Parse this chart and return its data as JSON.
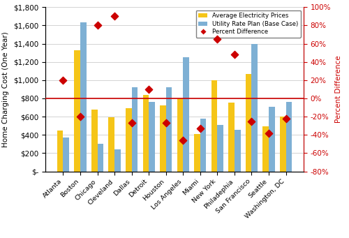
{
  "cities": [
    "Atlanta",
    "Boston",
    "Chicago",
    "Cleveland",
    "Dallas",
    "Detroit",
    "Houston",
    "Los Angeles",
    "Miami",
    "New York",
    "Philadephia",
    "San Francisco",
    "Seattle",
    "Washington, DC"
  ],
  "avg_electricity": [
    450,
    1330,
    680,
    590,
    690,
    840,
    720,
    800,
    410,
    1000,
    750,
    1070,
    495,
    600
  ],
  "utility_rate": [
    370,
    1630,
    300,
    240,
    920,
    760,
    920,
    1250,
    580,
    510,
    455,
    1395,
    705,
    760
  ],
  "pct_difference": [
    20,
    -20,
    80,
    90,
    -27,
    10,
    -27,
    -46,
    -33,
    65,
    48,
    -25,
    -38,
    -22
  ],
  "bar_color_avg": "#F5C518",
  "bar_color_utility": "#7EB0D4",
  "scatter_color": "#CC0000",
  "hline_color": "#CC0000",
  "ylim_left": [
    0,
    1800
  ],
  "ylim_right": [
    -80,
    100
  ],
  "ylabel_left": "Home Charging Cost (One Year)",
  "ylabel_right": "Percent Difference",
  "legend_labels": [
    "Average Electricity Prices",
    "Utility Rate Plan (Base Case)",
    "Percent Difference"
  ],
  "yticks_left": [
    0,
    200,
    400,
    600,
    800,
    1000,
    1200,
    1400,
    1600,
    1800
  ],
  "yticks_right": [
    -80,
    -60,
    -40,
    -20,
    0,
    20,
    40,
    60,
    80,
    100
  ],
  "figsize": [
    5.0,
    3.41
  ],
  "dpi": 100
}
